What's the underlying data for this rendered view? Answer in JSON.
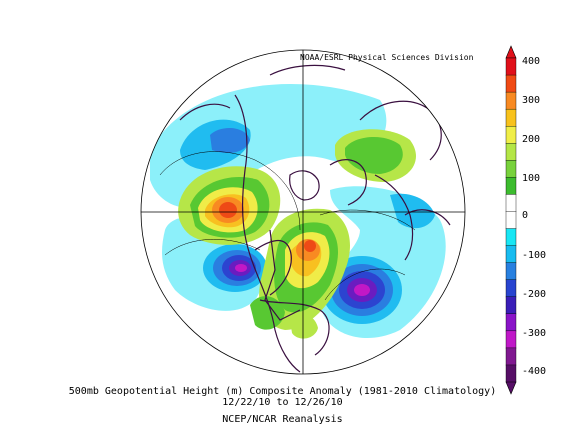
{
  "credit": "NOAA/ESRL Physical Sciences Division",
  "caption": {
    "line1": "500mb Geopotential Height (m) Composite Anomaly (1981-2010 Climatology)",
    "line2": "12/22/10  to 12/26/10",
    "line3": "NCEP/NCAR Reanalysis"
  },
  "colorbar": {
    "labels": [
      "400",
      "300",
      "200",
      "100",
      "0",
      "-100",
      "-200",
      "-300",
      "-400"
    ],
    "colors": [
      "#e0101a",
      "#f04a14",
      "#f88a22",
      "#f8c21c",
      "#f0ee48",
      "#b4e646",
      "#78d23c",
      "#3cbc2e",
      "#ffffff",
      "#ffffff",
      "#18e6f4",
      "#18bcf0",
      "#2880e0",
      "#2844d0",
      "#3a1eb8",
      "#8a14c8",
      "#c018c8",
      "#801890",
      "#560e66"
    ]
  },
  "map": {
    "colors": {
      "ocean_neg1": "#8cf0fa",
      "neg2": "#20bcf0",
      "neg3": "#2a7ee0",
      "neg4": "#2c44d0",
      "neg5": "#6a1cc0",
      "neg6": "#c218c6",
      "pos1": "#b6e648",
      "pos2": "#58c832",
      "pos3": "#f0ec48",
      "pos4": "#f8c020",
      "pos5": "#f88a22",
      "pos6": "#ee4a16",
      "coast": "#3a1040"
    }
  }
}
